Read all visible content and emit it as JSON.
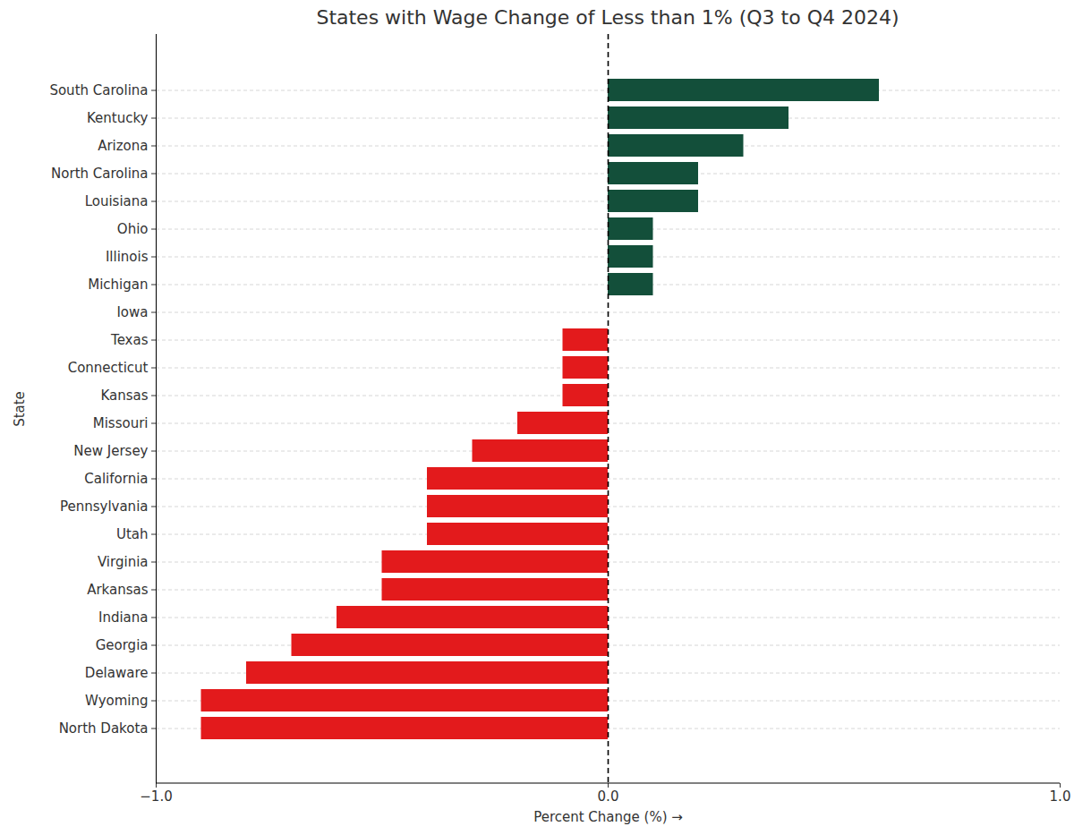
{
  "chart_data": {
    "type": "bar",
    "orientation": "horizontal",
    "title": "States with Wage Change of Less than 1% (Q3 to Q4 2024)",
    "xlabel": "Percent Change (%)",
    "ylabel": "State",
    "categories": [
      "South Carolina",
      "Kentucky",
      "Arizona",
      "North Carolina",
      "Louisiana",
      "Ohio",
      "Illinois",
      "Michigan",
      "Iowa",
      "Texas",
      "Connecticut",
      "Kansas",
      "Missouri",
      "New Jersey",
      "California",
      "Pennsylvania",
      "Utah",
      "Virginia",
      "Arkansas",
      "Indiana",
      "Georgia",
      "Delaware",
      "Wyoming",
      "North Dakota"
    ],
    "values": [
      0.6,
      0.4,
      0.3,
      0.2,
      0.2,
      0.1,
      0.1,
      0.1,
      0,
      -0.1,
      -0.1,
      -0.1,
      -0.2,
      -0.3,
      -0.4,
      -0.4,
      -0.4,
      -0.5,
      -0.5,
      -0.6,
      -0.7,
      -0.8,
      -0.9,
      -0.9
    ],
    "colors": [
      "#134f3a",
      "#134f3a",
      "#134f3a",
      "#134f3a",
      "#134f3a",
      "#134f3a",
      "#134f3a",
      "#134f3a",
      "#e31a1c",
      "#e31a1c",
      "#e31a1c",
      "#e31a1c",
      "#e31a1c",
      "#e31a1c",
      "#e31a1c",
      "#e31a1c",
      "#e31a1c",
      "#e31a1c",
      "#e31a1c",
      "#e31a1c",
      "#e31a1c",
      "#e31a1c",
      "#e31a1c",
      "#e31a1c"
    ],
    "xlim": [
      -1,
      1
    ],
    "xticks": [
      -1,
      0,
      1
    ],
    "grid": true
  }
}
